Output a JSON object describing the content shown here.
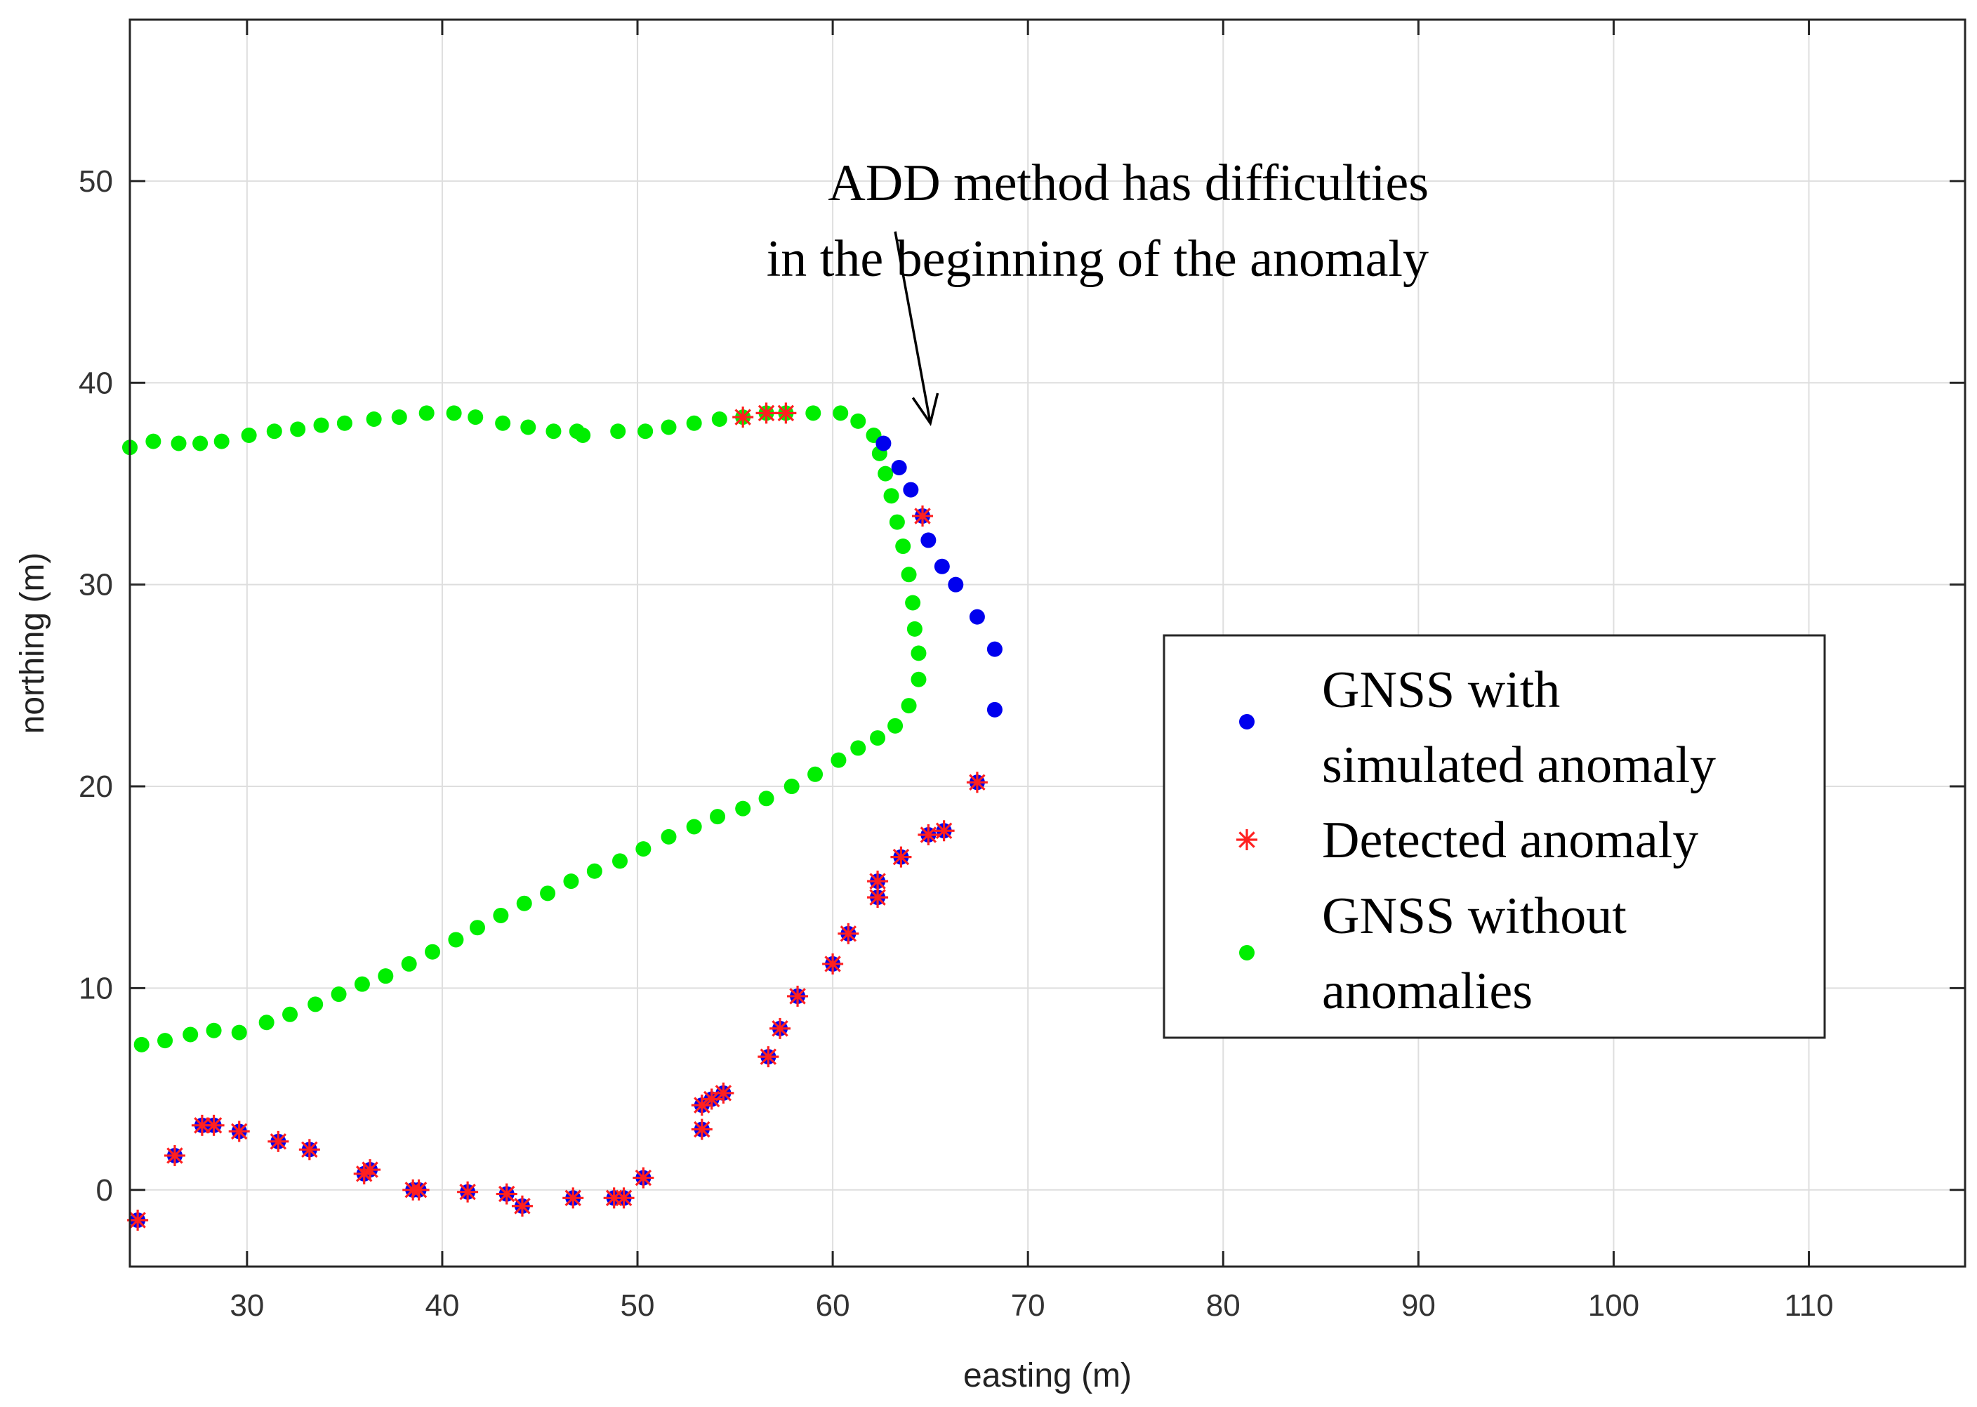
{
  "chart_data": {
    "type": "scatter",
    "xlabel": "easting (m)",
    "ylabel": "northing (m)",
    "xlim": [
      24,
      118
    ],
    "ylim": [
      -3.8,
      58
    ],
    "xticks": [
      30,
      40,
      50,
      60,
      70,
      80,
      90,
      100,
      110
    ],
    "yticks": [
      0,
      10,
      20,
      30,
      40,
      50
    ],
    "grid": true,
    "annotation": {
      "lines": [
        "ADD method has difficulties",
        "in the beginning of the anomaly"
      ],
      "arrow_from": [
        63.2,
        47.5
      ],
      "arrow_to": [
        65,
        38
      ]
    },
    "legend": {
      "position": "right",
      "entries": [
        {
          "label_lines": [
            "GNSS with",
            "simulated anomaly"
          ],
          "series": "gnss_with_anomaly"
        },
        {
          "label_lines": [
            "Detected anomaly"
          ],
          "series": "detected_anomaly"
        },
        {
          "label_lines": [
            "GNSS without",
            "anomalies"
          ],
          "series": "gnss_without_anomalies"
        }
      ]
    },
    "series": [
      {
        "id": "gnss_without_anomalies",
        "name": "GNSS without anomalies",
        "marker": "dot",
        "color": "#00ee00",
        "points": [
          [
            24,
            36.8
          ],
          [
            25.2,
            37.1
          ],
          [
            26.5,
            37
          ],
          [
            27.6,
            37
          ],
          [
            28.7,
            37.1
          ],
          [
            30.1,
            37.4
          ],
          [
            31.4,
            37.6
          ],
          [
            32.6,
            37.7
          ],
          [
            33.8,
            37.9
          ],
          [
            35,
            38
          ],
          [
            36.5,
            38.2
          ],
          [
            37.8,
            38.3
          ],
          [
            39.2,
            38.5
          ],
          [
            40.6,
            38.5
          ],
          [
            41.7,
            38.3
          ],
          [
            43.1,
            38
          ],
          [
            44.4,
            37.8
          ],
          [
            45.7,
            37.6
          ],
          [
            46.9,
            37.6
          ],
          [
            47.2,
            37.4
          ],
          [
            49,
            37.6
          ],
          [
            50.4,
            37.6
          ],
          [
            51.6,
            37.8
          ],
          [
            52.9,
            38
          ],
          [
            54.2,
            38.2
          ],
          [
            55.4,
            38.3
          ],
          [
            56.6,
            38.5
          ],
          [
            57.6,
            38.5
          ],
          [
            59,
            38.5
          ],
          [
            60.4,
            38.5
          ],
          [
            61.3,
            38.1
          ],
          [
            62.1,
            37.4
          ],
          [
            62.4,
            36.5
          ],
          [
            62.7,
            35.5
          ],
          [
            63,
            34.4
          ],
          [
            63.3,
            33.1
          ],
          [
            63.6,
            31.9
          ],
          [
            63.9,
            30.5
          ],
          [
            64.1,
            29.1
          ],
          [
            64.2,
            27.8
          ],
          [
            64.4,
            26.6
          ],
          [
            64.4,
            25.3
          ],
          [
            63.9,
            24
          ],
          [
            63.2,
            23
          ],
          [
            62.3,
            22.4
          ],
          [
            61.3,
            21.9
          ],
          [
            60.3,
            21.3
          ],
          [
            59.1,
            20.6
          ],
          [
            57.9,
            20
          ],
          [
            56.6,
            19.4
          ],
          [
            55.4,
            18.9
          ],
          [
            54.1,
            18.5
          ],
          [
            52.9,
            18
          ],
          [
            51.6,
            17.5
          ],
          [
            50.3,
            16.9
          ],
          [
            49.1,
            16.3
          ],
          [
            47.8,
            15.8
          ],
          [
            46.6,
            15.3
          ],
          [
            45.4,
            14.7
          ],
          [
            44.2,
            14.2
          ],
          [
            43,
            13.6
          ],
          [
            41.8,
            13
          ],
          [
            40.7,
            12.4
          ],
          [
            39.5,
            11.8
          ],
          [
            38.3,
            11.2
          ],
          [
            37.1,
            10.6
          ],
          [
            35.9,
            10.2
          ],
          [
            34.7,
            9.7
          ],
          [
            33.5,
            9.2
          ],
          [
            32.2,
            8.7
          ],
          [
            31,
            8.3
          ],
          [
            29.6,
            7.8
          ],
          [
            28.3,
            7.9
          ],
          [
            27.1,
            7.7
          ],
          [
            25.8,
            7.4
          ],
          [
            24.6,
            7.2
          ]
        ]
      },
      {
        "id": "gnss_with_anomaly",
        "name": "GNSS with simulated anomaly",
        "marker": "dot",
        "color": "#0000ee",
        "points": [
          [
            62.6,
            37
          ],
          [
            63.4,
            35.8
          ],
          [
            64,
            34.7
          ],
          [
            64.6,
            33.4
          ],
          [
            64.9,
            32.2
          ],
          [
            65.6,
            30.9
          ],
          [
            66.3,
            30
          ],
          [
            67.4,
            28.4
          ],
          [
            68.3,
            26.8
          ],
          [
            68.3,
            23.8
          ],
          [
            67.4,
            20.2
          ],
          [
            65.7,
            17.8
          ],
          [
            64.9,
            17.6
          ],
          [
            63.5,
            16.5
          ],
          [
            62.3,
            15.3
          ],
          [
            62.3,
            14.5
          ],
          [
            60.8,
            12.7
          ],
          [
            60,
            11.2
          ],
          [
            58.2,
            9.6
          ],
          [
            57.3,
            8
          ],
          [
            56.7,
            6.6
          ],
          [
            54.4,
            4.8
          ],
          [
            53.8,
            4.5
          ],
          [
            53.3,
            4.2
          ],
          [
            53.3,
            3
          ],
          [
            50.3,
            0.6
          ],
          [
            49.3,
            -0.4
          ],
          [
            48.8,
            -0.4
          ],
          [
            46.7,
            -0.4
          ],
          [
            44.1,
            -0.8
          ],
          [
            43.3,
            -0.2
          ],
          [
            41.3,
            -0.1
          ],
          [
            38.8,
            0
          ],
          [
            38.5,
            0
          ],
          [
            36.3,
            1
          ],
          [
            36,
            0.8
          ],
          [
            33.2,
            2
          ],
          [
            31.6,
            2.4
          ],
          [
            29.6,
            2.9
          ],
          [
            28.3,
            3.2
          ],
          [
            27.7,
            3.2
          ],
          [
            26.3,
            1.7
          ],
          [
            24.4,
            -1.5
          ]
        ]
      },
      {
        "id": "detected_anomaly",
        "name": "Detected anomaly",
        "marker": "star",
        "color": "#ff2020",
        "points": [
          [
            55.4,
            38.3
          ],
          [
            56.6,
            38.5
          ],
          [
            57.6,
            38.5
          ],
          [
            64.6,
            33.4
          ],
          [
            67.4,
            20.2
          ],
          [
            65.7,
            17.8
          ],
          [
            64.9,
            17.6
          ],
          [
            63.5,
            16.5
          ],
          [
            62.3,
            15.3
          ],
          [
            62.3,
            14.5
          ],
          [
            60.8,
            12.7
          ],
          [
            60,
            11.2
          ],
          [
            58.2,
            9.6
          ],
          [
            57.3,
            8
          ],
          [
            56.7,
            6.6
          ],
          [
            54.4,
            4.8
          ],
          [
            53.8,
            4.5
          ],
          [
            53.3,
            4.2
          ],
          [
            53.3,
            3
          ],
          [
            50.3,
            0.6
          ],
          [
            49.3,
            -0.4
          ],
          [
            48.8,
            -0.4
          ],
          [
            46.7,
            -0.4
          ],
          [
            44.1,
            -0.8
          ],
          [
            43.3,
            -0.2
          ],
          [
            41.3,
            -0.1
          ],
          [
            38.8,
            0
          ],
          [
            38.5,
            0
          ],
          [
            36.3,
            1
          ],
          [
            36,
            0.8
          ],
          [
            33.2,
            2
          ],
          [
            31.6,
            2.4
          ],
          [
            29.6,
            2.9
          ],
          [
            28.3,
            3.2
          ],
          [
            27.7,
            3.2
          ],
          [
            26.3,
            1.7
          ],
          [
            24.4,
            -1.5
          ]
        ]
      }
    ]
  }
}
